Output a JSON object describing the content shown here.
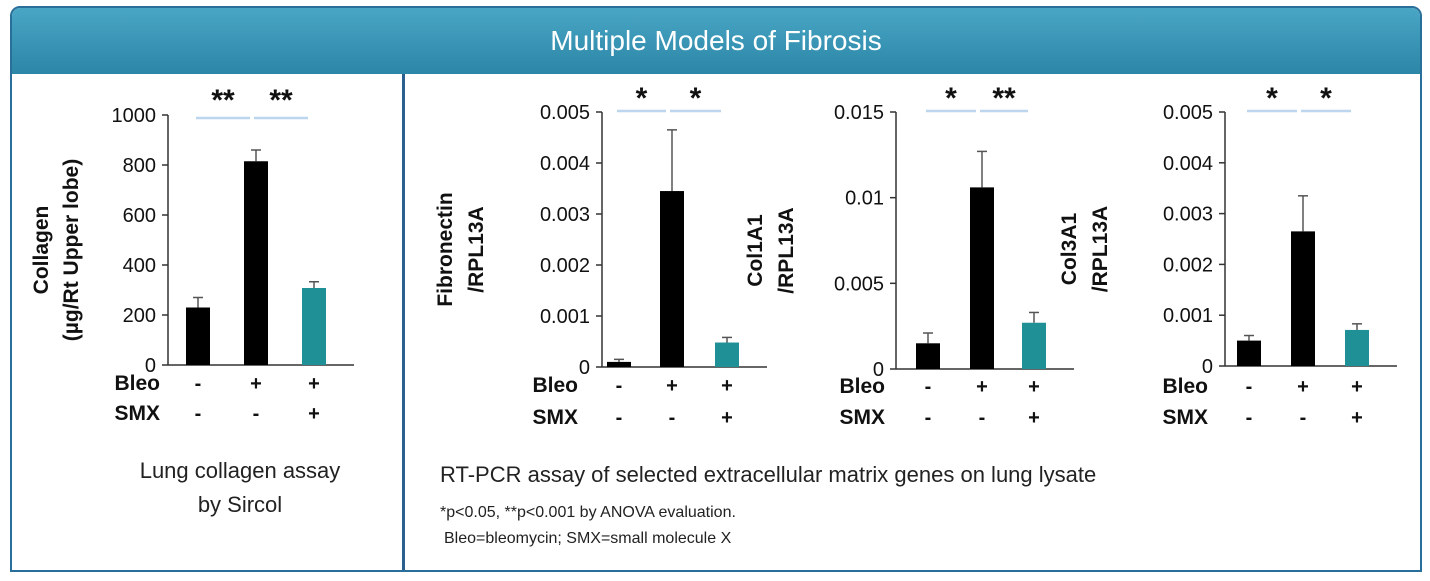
{
  "header": {
    "title": "Multiple Models of Fibrosis"
  },
  "colors": {
    "header": "#2b86a7",
    "control": "#000000",
    "smx": "#1f9096",
    "sig_line": "#bcd6ee",
    "divider": "#2a5f8f"
  },
  "chart_data": [
    {
      "type": "bar",
      "ylabel_lines": [
        "Collagen",
        "(µg/Rt Upper lobe)"
      ],
      "ylim": [
        0,
        1000
      ],
      "ticks": [
        "0",
        "200",
        "400",
        "600",
        "800",
        "1000"
      ],
      "tick_values": [
        0,
        200,
        400,
        600,
        800,
        1000
      ],
      "values": [
        230,
        815,
        308
      ],
      "errors": [
        40,
        45,
        25
      ],
      "bar_colors": [
        "#000000",
        "#000000",
        "#1f9096"
      ],
      "significance": [
        "**",
        "**"
      ],
      "conditions": [
        {
          "label": "Bleo",
          "marks": [
            "-",
            "+",
            "+"
          ]
        },
        {
          "label": "SMX",
          "marks": [
            "-",
            "-",
            "+"
          ]
        }
      ]
    },
    {
      "type": "bar",
      "ylabel_lines": [
        "Fibronectin",
        "/RPL13A"
      ],
      "ylim": [
        0,
        0.005
      ],
      "ticks": [
        "0",
        "0.001",
        "0.002",
        "0.003",
        "0.004",
        "0.005"
      ],
      "tick_values": [
        0,
        0.001,
        0.002,
        0.003,
        0.004,
        0.005
      ],
      "values": [
        0.0001,
        0.00345,
        0.00048
      ],
      "errors": [
        5e-05,
        0.0012,
        0.0001
      ],
      "bar_colors": [
        "#000000",
        "#000000",
        "#1f9096"
      ],
      "significance": [
        "*",
        "*"
      ],
      "conditions": [
        {
          "label": "Bleo",
          "marks": [
            "-",
            "+",
            "+"
          ]
        },
        {
          "label": "SMX",
          "marks": [
            "-",
            "-",
            "+"
          ]
        }
      ]
    },
    {
      "type": "bar",
      "ylabel_lines": [
        "Col1A1",
        "/RPL13A"
      ],
      "ylim": [
        0,
        0.015
      ],
      "ticks": [
        "0",
        "0.005",
        "0.01",
        "0.015"
      ],
      "tick_values": [
        0,
        0.005,
        0.01,
        0.015
      ],
      "values": [
        0.0015,
        0.0106,
        0.0027
      ],
      "errors": [
        0.0006,
        0.0021,
        0.0006
      ],
      "bar_colors": [
        "#000000",
        "#000000",
        "#1f9096"
      ],
      "significance": [
        "*",
        "**"
      ],
      "conditions": [
        {
          "label": "Bleo",
          "marks": [
            "-",
            "+",
            "+"
          ]
        },
        {
          "label": "SMX",
          "marks": [
            "-",
            "-",
            "+"
          ]
        }
      ]
    },
    {
      "type": "bar",
      "ylabel_lines": [
        "Col3A1",
        "/RPL13A"
      ],
      "ylim": [
        0,
        0.005
      ],
      "ticks": [
        "0",
        "0.001",
        "0.002",
        "0.003",
        "0.004",
        "0.005"
      ],
      "tick_values": [
        0,
        0.001,
        0.002,
        0.003,
        0.004,
        0.005
      ],
      "values": [
        0.0005,
        0.00265,
        0.00071
      ],
      "errors": [
        0.0001,
        0.0007,
        0.00012
      ],
      "bar_colors": [
        "#000000",
        "#000000",
        "#1f9096"
      ],
      "significance": [
        "*",
        "*"
      ],
      "conditions": [
        {
          "label": "Bleo",
          "marks": [
            "-",
            "+",
            "+"
          ]
        },
        {
          "label": "SMX",
          "marks": [
            "-",
            "-",
            "+"
          ]
        }
      ]
    }
  ],
  "captions": {
    "left_line1": "Lung collagen assay",
    "left_line2": "by Sircol",
    "right": "RT-PCR assay of selected extracellular matrix genes on lung lysate",
    "note1": "*p<0.05, **p<0.001 by ANOVA evaluation.",
    "note2": "Bleo=bleomycin; SMX=small molecule X"
  }
}
